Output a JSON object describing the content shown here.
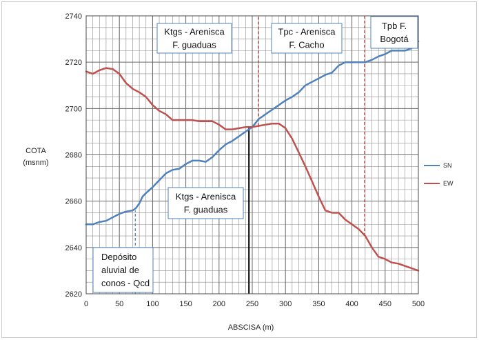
{
  "chart_data": {
    "type": "line",
    "xlabel": "ABSCISA (m)",
    "ylabel": [
      "COTA",
      "(msnm)"
    ],
    "xlim": [
      0,
      500
    ],
    "ylim": [
      2620,
      2740
    ],
    "x_ticks": [
      0,
      50,
      100,
      150,
      200,
      250,
      300,
      350,
      400,
      450,
      500
    ],
    "y_ticks": [
      2620,
      2640,
      2660,
      2680,
      2700,
      2720,
      2740
    ],
    "grid": true,
    "legend_position": "right",
    "series": [
      {
        "name": "SN",
        "color": "#4f81bd",
        "x": [
          0,
          10,
          20,
          30,
          40,
          50,
          60,
          70,
          75,
          80,
          85,
          90,
          100,
          110,
          120,
          130,
          140,
          150,
          160,
          170,
          180,
          190,
          200,
          210,
          220,
          230,
          240,
          250,
          260,
          270,
          280,
          290,
          300,
          310,
          320,
          330,
          340,
          350,
          360,
          370,
          380,
          390,
          400,
          410,
          420,
          430,
          440,
          450,
          460,
          470,
          480,
          490,
          500
        ],
        "values": [
          2650,
          2650,
          2651,
          2651.5,
          2653,
          2654.5,
          2655.5,
          2656,
          2657,
          2659,
          2662,
          2663.5,
          2666,
          2669,
          2672,
          2673.5,
          2674,
          2676,
          2677.5,
          2677.5,
          2677,
          2679,
          2682,
          2684.5,
          2686,
          2688,
          2690,
          2692,
          2695.5,
          2697.5,
          2699.5,
          2701.5,
          2703.5,
          2705,
          2707,
          2710,
          2711.5,
          2713,
          2714.5,
          2715.5,
          2718.5,
          2720,
          2720,
          2720,
          2720,
          2721,
          2722.5,
          2723.5,
          2725,
          2725,
          2725,
          2726,
          2729
        ]
      },
      {
        "name": "EW",
        "color": "#c0504d",
        "x": [
          0,
          10,
          20,
          30,
          40,
          50,
          60,
          70,
          80,
          90,
          100,
          110,
          120,
          130,
          140,
          150,
          160,
          170,
          180,
          190,
          200,
          210,
          220,
          230,
          240,
          250,
          260,
          270,
          280,
          290,
          300,
          310,
          320,
          330,
          340,
          350,
          360,
          370,
          380,
          390,
          400,
          410,
          420,
          430,
          440,
          450,
          460,
          470,
          480,
          490,
          500
        ],
        "values": [
          2716,
          2715,
          2716.5,
          2717.5,
          2717,
          2715,
          2711,
          2708.5,
          2707,
          2705,
          2701.5,
          2699,
          2697.5,
          2695,
          2695,
          2695,
          2695,
          2694.5,
          2694.5,
          2694.5,
          2693,
          2691,
          2691,
          2691.5,
          2692,
          2692,
          2692.5,
          2693,
          2693.5,
          2693.5,
          2691.5,
          2687,
          2681,
          2675,
          2668.5,
          2662,
          2656,
          2655,
          2655,
          2652,
          2650,
          2648,
          2645,
          2640,
          2636,
          2635,
          2633.5,
          2633,
          2632,
          2631,
          2630
        ]
      }
    ],
    "vertical_lines": [
      {
        "x": 74,
        "y_bottom": 2620,
        "y_top": 2656,
        "style": "dashed",
        "color": "#4f81bd"
      },
      {
        "x": 245,
        "y_bottom": 2620,
        "y_top": 2692,
        "style": "solid",
        "color": "#000000"
      },
      {
        "x": 259,
        "y_bottom": 2692.5,
        "y_top": 2740,
        "style": "dashed",
        "color": "#c0504d"
      },
      {
        "x": 419,
        "y_bottom": 2645,
        "y_top": 2740,
        "style": "dashed",
        "color": "#c0504d"
      }
    ],
    "annotations": [
      {
        "lines": [
          "Ktgs - Arenisca",
          "F. guaduas"
        ]
      },
      {
        "lines": [
          "Tpc - Arenisca",
          "F. Cacho"
        ]
      },
      {
        "lines": [
          "Tpb F.",
          "Bogotá"
        ]
      },
      {
        "lines": [
          "Ktgs - Arenisca",
          "F. guaduas"
        ]
      },
      {
        "lines": [
          "Depósito",
          "aluvial de",
          "conos - Qcd"
        ]
      }
    ]
  }
}
